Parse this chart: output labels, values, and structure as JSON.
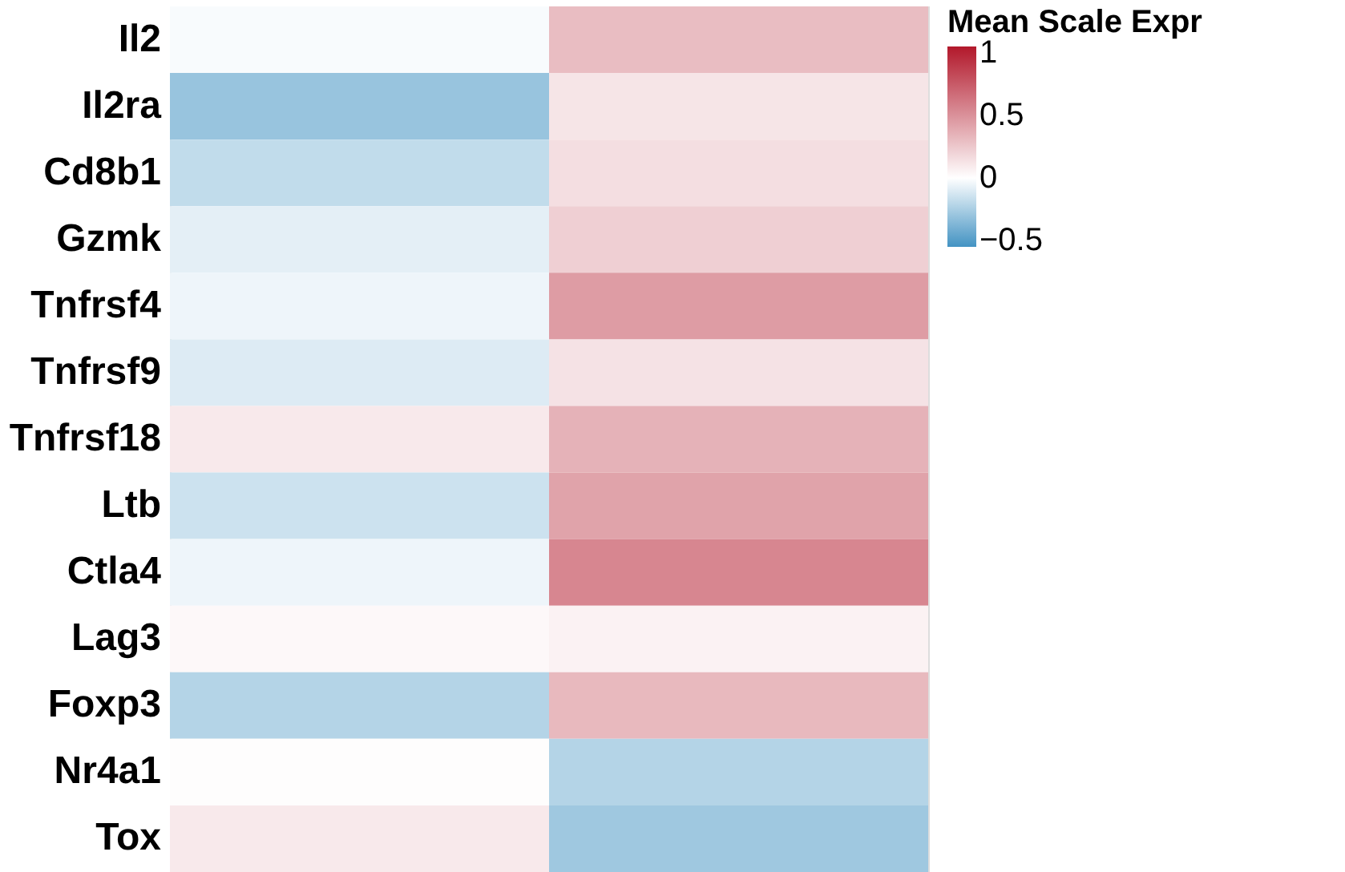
{
  "chart_data": {
    "type": "heatmap",
    "categories": [
      null,
      null
    ],
    "y_categories": [
      "Il2",
      "Il2ra",
      "Cd8b1",
      "Gzmk",
      "Tnfrsf4",
      "Tnfrsf9",
      "Tnfrsf18",
      "Ltb",
      "Ctla4",
      "Lag3",
      "Foxp3",
      "Nr4a1",
      "Tox"
    ],
    "cells": [
      [
        -0.02,
        0.3
      ],
      [
        -0.3,
        0.12
      ],
      [
        -0.18,
        0.15
      ],
      [
        -0.08,
        0.22
      ],
      [
        -0.05,
        0.45
      ],
      [
        -0.1,
        0.13
      ],
      [
        0.1,
        0.35
      ],
      [
        -0.15,
        0.42
      ],
      [
        -0.05,
        0.55
      ],
      [
        0.03,
        0.06
      ],
      [
        -0.22,
        0.32
      ],
      [
        0.01,
        -0.22
      ],
      [
        0.1,
        -0.28
      ]
    ],
    "clabel": "Mean Scale Expr",
    "clim": [
      -0.55,
      1.05
    ],
    "cticks": [
      {
        "value": -0.5,
        "label": "−0.5"
      },
      0,
      0.5,
      1
    ],
    "colors": [
      "#4393c3",
      "#ffffff",
      "#b2182b"
    ],
    "tick_labels": "y"
  }
}
